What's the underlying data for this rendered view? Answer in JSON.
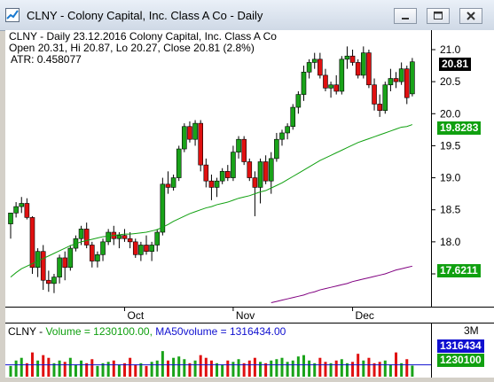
{
  "window": {
    "title": "CLNY - Colony Capital, Inc. Class A Co - Daily"
  },
  "info": {
    "line1": "CLNY - Daily 23.12.2016  Colony Capital, Inc. Class A Co",
    "line2": "Open 20.31, Hi 20.87, Lo 20.27, Close 20.81 (2.8%)",
    "line3": "ATR: 0.458077"
  },
  "price_axis": {
    "ticks": [
      "21.0",
      "20.5",
      "20.0",
      "19.5",
      "19.0",
      "18.5",
      "18.0",
      "17.5"
    ]
  },
  "price_tags": {
    "last": "20.81",
    "ma_fast": "19.8283",
    "ma_slow": "17.6211"
  },
  "dates": [
    "Oct",
    "Nov",
    "Dec"
  ],
  "volume": {
    "label_prefix": "CLNY - ",
    "label_volume": "Volume = 1230100.00, ",
    "label_ma": "MA50volume = 1316434.00",
    "axis_label": "3M",
    "tag_ma": "1316434",
    "tag_vol": "1230100"
  },
  "colors": {
    "up": "#19a319",
    "down": "#e01010",
    "ma_fast": "#10a010",
    "ma_slow": "#800080",
    "vol_ma": "#1010d0",
    "last_tag_bg": "#000000"
  },
  "chart_data": {
    "type": "candlestick",
    "ylim": [
      17.1,
      21.3
    ],
    "candles": [
      {
        "o": 18.28,
        "h": 18.45,
        "l": 18.05,
        "c": 18.45
      },
      {
        "o": 18.45,
        "h": 18.62,
        "l": 18.38,
        "c": 18.55
      },
      {
        "o": 18.55,
        "h": 18.7,
        "l": 18.45,
        "c": 18.6
      },
      {
        "o": 18.6,
        "h": 18.68,
        "l": 18.35,
        "c": 18.38
      },
      {
        "o": 18.38,
        "h": 18.4,
        "l": 17.5,
        "c": 17.6
      },
      {
        "o": 17.6,
        "h": 17.9,
        "l": 17.45,
        "c": 17.85
      },
      {
        "o": 17.85,
        "h": 17.95,
        "l": 17.25,
        "c": 17.4
      },
      {
        "o": 17.4,
        "h": 17.55,
        "l": 17.22,
        "c": 17.35
      },
      {
        "o": 17.35,
        "h": 17.5,
        "l": 17.2,
        "c": 17.45
      },
      {
        "o": 17.45,
        "h": 17.8,
        "l": 17.35,
        "c": 17.75
      },
      {
        "o": 17.75,
        "h": 17.85,
        "l": 17.4,
        "c": 17.6
      },
      {
        "o": 17.6,
        "h": 17.95,
        "l": 17.55,
        "c": 17.9
      },
      {
        "o": 17.9,
        "h": 18.1,
        "l": 17.85,
        "c": 18.05
      },
      {
        "o": 18.05,
        "h": 18.25,
        "l": 17.95,
        "c": 18.2
      },
      {
        "o": 18.2,
        "h": 18.3,
        "l": 17.9,
        "c": 17.95
      },
      {
        "o": 17.95,
        "h": 18.0,
        "l": 17.6,
        "c": 17.7
      },
      {
        "o": 17.7,
        "h": 17.85,
        "l": 17.6,
        "c": 17.8
      },
      {
        "o": 17.8,
        "h": 18.05,
        "l": 17.7,
        "c": 18.0
      },
      {
        "o": 18.0,
        "h": 18.2,
        "l": 17.95,
        "c": 18.15
      },
      {
        "o": 18.15,
        "h": 18.25,
        "l": 17.95,
        "c": 18.05
      },
      {
        "o": 18.05,
        "h": 18.15,
        "l": 17.9,
        "c": 18.1
      },
      {
        "o": 18.1,
        "h": 18.2,
        "l": 18.0,
        "c": 18.05
      },
      {
        "o": 18.05,
        "h": 18.15,
        "l": 17.9,
        "c": 18.0
      },
      {
        "o": 18.0,
        "h": 18.05,
        "l": 17.75,
        "c": 17.8
      },
      {
        "o": 17.8,
        "h": 18.0,
        "l": 17.7,
        "c": 17.95
      },
      {
        "o": 17.95,
        "h": 18.1,
        "l": 17.8,
        "c": 17.85
      },
      {
        "o": 17.85,
        "h": 18.0,
        "l": 17.7,
        "c": 17.95
      },
      {
        "o": 17.95,
        "h": 18.2,
        "l": 17.85,
        "c": 18.15
      },
      {
        "o": 18.15,
        "h": 19.0,
        "l": 18.1,
        "c": 18.9
      },
      {
        "o": 18.9,
        "h": 19.1,
        "l": 18.75,
        "c": 18.85
      },
      {
        "o": 18.85,
        "h": 19.05,
        "l": 18.8,
        "c": 19.0
      },
      {
        "o": 19.0,
        "h": 19.5,
        "l": 18.95,
        "c": 19.45
      },
      {
        "o": 19.45,
        "h": 19.85,
        "l": 19.4,
        "c": 19.8
      },
      {
        "o": 19.8,
        "h": 19.88,
        "l": 19.55,
        "c": 19.6
      },
      {
        "o": 19.6,
        "h": 19.9,
        "l": 19.5,
        "c": 19.85
      },
      {
        "o": 19.85,
        "h": 19.9,
        "l": 19.1,
        "c": 19.2
      },
      {
        "o": 19.2,
        "h": 19.3,
        "l": 18.85,
        "c": 18.95
      },
      {
        "o": 18.95,
        "h": 19.05,
        "l": 18.65,
        "c": 18.85
      },
      {
        "o": 18.85,
        "h": 19.0,
        "l": 18.7,
        "c": 18.95
      },
      {
        "o": 18.95,
        "h": 19.15,
        "l": 18.9,
        "c": 19.1
      },
      {
        "o": 19.1,
        "h": 19.2,
        "l": 18.95,
        "c": 19.0
      },
      {
        "o": 19.0,
        "h": 19.5,
        "l": 18.95,
        "c": 19.4
      },
      {
        "o": 19.4,
        "h": 19.65,
        "l": 19.3,
        "c": 19.6
      },
      {
        "o": 19.6,
        "h": 19.65,
        "l": 19.2,
        "c": 19.25
      },
      {
        "o": 19.25,
        "h": 19.3,
        "l": 18.95,
        "c": 19.0
      },
      {
        "o": 19.0,
        "h": 19.1,
        "l": 18.4,
        "c": 18.85
      },
      {
        "o": 18.85,
        "h": 19.3,
        "l": 18.6,
        "c": 19.25
      },
      {
        "o": 19.25,
        "h": 19.35,
        "l": 18.9,
        "c": 18.95
      },
      {
        "o": 18.95,
        "h": 19.4,
        "l": 18.75,
        "c": 19.3
      },
      {
        "o": 19.3,
        "h": 19.7,
        "l": 19.25,
        "c": 19.6
      },
      {
        "o": 19.6,
        "h": 19.75,
        "l": 19.5,
        "c": 19.7
      },
      {
        "o": 19.7,
        "h": 19.85,
        "l": 19.6,
        "c": 19.8
      },
      {
        "o": 19.8,
        "h": 20.15,
        "l": 19.75,
        "c": 20.1
      },
      {
        "o": 20.1,
        "h": 20.35,
        "l": 20.0,
        "c": 20.3
      },
      {
        "o": 20.3,
        "h": 20.75,
        "l": 20.2,
        "c": 20.65
      },
      {
        "o": 20.65,
        "h": 20.85,
        "l": 20.55,
        "c": 20.8
      },
      {
        "o": 20.8,
        "h": 20.95,
        "l": 20.7,
        "c": 20.85
      },
      {
        "o": 20.85,
        "h": 20.95,
        "l": 20.55,
        "c": 20.6
      },
      {
        "o": 20.6,
        "h": 20.7,
        "l": 20.35,
        "c": 20.4
      },
      {
        "o": 20.4,
        "h": 20.5,
        "l": 20.25,
        "c": 20.45
      },
      {
        "o": 20.45,
        "h": 20.6,
        "l": 20.3,
        "c": 20.35
      },
      {
        "o": 20.35,
        "h": 20.9,
        "l": 20.3,
        "c": 20.85
      },
      {
        "o": 20.85,
        "h": 21.05,
        "l": 20.7,
        "c": 20.9
      },
      {
        "o": 20.9,
        "h": 21.0,
        "l": 20.75,
        "c": 20.8
      },
      {
        "o": 20.8,
        "h": 20.85,
        "l": 20.55,
        "c": 20.6
      },
      {
        "o": 20.6,
        "h": 21.05,
        "l": 20.55,
        "c": 20.95
      },
      {
        "o": 20.95,
        "h": 21.0,
        "l": 20.4,
        "c": 20.45
      },
      {
        "o": 20.45,
        "h": 20.55,
        "l": 20.05,
        "c": 20.15
      },
      {
        "o": 20.15,
        "h": 20.3,
        "l": 19.95,
        "c": 20.05
      },
      {
        "o": 20.05,
        "h": 20.5,
        "l": 20.0,
        "c": 20.45
      },
      {
        "o": 20.45,
        "h": 20.7,
        "l": 20.35,
        "c": 20.55
      },
      {
        "o": 20.55,
        "h": 20.65,
        "l": 20.4,
        "c": 20.5
      },
      {
        "o": 20.5,
        "h": 20.8,
        "l": 20.45,
        "c": 20.7
      },
      {
        "o": 20.7,
        "h": 20.75,
        "l": 20.15,
        "c": 20.25
      },
      {
        "o": 20.31,
        "h": 20.87,
        "l": 20.27,
        "c": 20.81
      }
    ],
    "ma_fast": [
      17.45,
      17.52,
      17.58,
      17.62,
      17.66,
      17.7,
      17.74,
      17.78,
      17.82,
      17.86,
      17.9,
      17.94,
      17.97,
      18.0,
      18.02,
      18.04,
      18.06,
      18.08,
      18.09,
      18.1,
      18.11,
      18.12,
      18.12,
      18.13,
      18.14,
      18.15,
      18.17,
      18.19,
      18.23,
      18.27,
      18.32,
      18.36,
      18.4,
      18.44,
      18.47,
      18.5,
      18.53,
      18.55,
      18.58,
      18.6,
      18.62,
      18.65,
      18.68,
      18.7,
      18.72,
      18.75,
      18.78,
      18.8,
      18.84,
      18.88,
      18.92,
      18.97,
      19.02,
      19.07,
      19.12,
      19.17,
      19.22,
      19.27,
      19.31,
      19.35,
      19.39,
      19.43,
      19.47,
      19.51,
      19.55,
      19.58,
      19.61,
      19.64,
      19.67,
      19.7,
      19.73,
      19.76,
      19.79,
      19.8,
      19.83
    ],
    "ma_slow": [
      17.05,
      17.07,
      17.09,
      17.11,
      17.13,
      17.15,
      17.17,
      17.2,
      17.22,
      17.25,
      17.27,
      17.29,
      17.31,
      17.33,
      17.35,
      17.38,
      17.4,
      17.42,
      17.44,
      17.46,
      17.48,
      17.5,
      17.53,
      17.56,
      17.58,
      17.6,
      17.62
    ],
    "ma_slow_start_index": 48,
    "volume": [
      0.4,
      0.6,
      0.7,
      0.5,
      0.9,
      0.6,
      0.8,
      0.7,
      0.5,
      0.6,
      0.55,
      0.7,
      0.45,
      0.6,
      0.5,
      0.65,
      0.4,
      0.5,
      0.55,
      0.6,
      0.45,
      0.5,
      0.7,
      0.45,
      0.5,
      0.4,
      0.55,
      0.6,
      0.95,
      0.6,
      0.7,
      0.75,
      0.65,
      0.5,
      0.6,
      0.8,
      0.7,
      0.6,
      0.5,
      0.45,
      0.6,
      0.55,
      0.65,
      0.5,
      0.6,
      0.7,
      0.55,
      0.5,
      0.6,
      0.65,
      0.7,
      0.55,
      0.6,
      0.75,
      0.8,
      0.6,
      0.5,
      0.7,
      0.55,
      0.5,
      0.6,
      0.65,
      0.5,
      0.55,
      0.85,
      0.6,
      0.7,
      0.5,
      0.55,
      0.6,
      0.45,
      0.9,
      0.5,
      0.65,
      0.41
    ],
    "volume_ma": 0.44,
    "vol_ylim": [
      0,
      3
    ]
  }
}
